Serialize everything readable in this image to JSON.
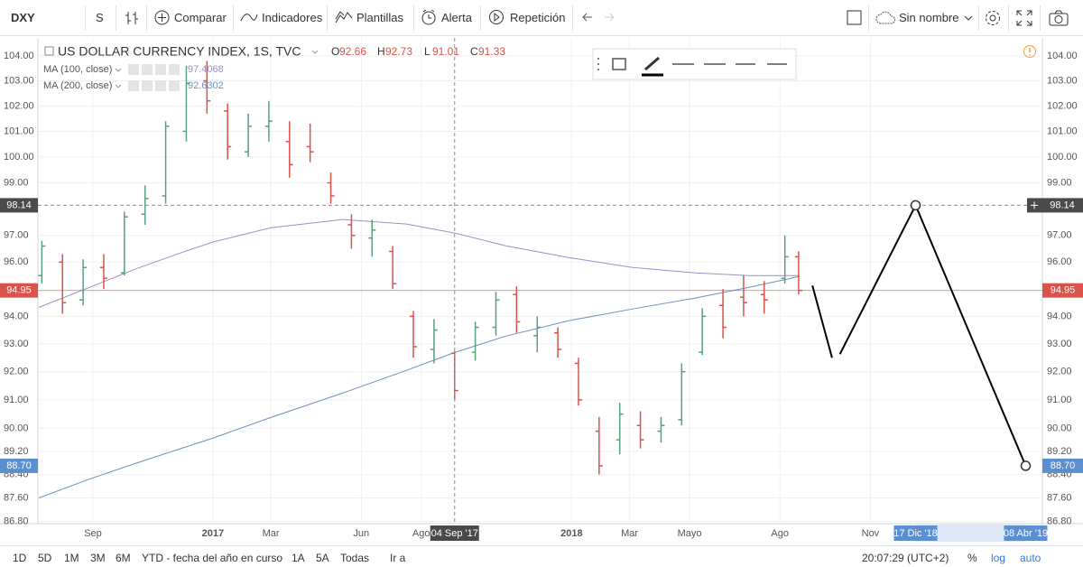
{
  "toolbar": {
    "symbol": "DXY",
    "interval": "S",
    "compare": "Comparar",
    "indicators": "Indicadores",
    "templates": "Plantillas",
    "alert": "Alerta",
    "replay": "Repetición",
    "layout": "Sin nombre"
  },
  "chart_data": {
    "type": "ohlc",
    "title": "US DOLLAR CURRENCY INDEX, 1S, TVC",
    "legend_letters": [
      "O",
      "H",
      "L",
      "C"
    ],
    "legend_values": [
      92.66,
      92.73,
      91.01,
      91.33
    ],
    "up_color": "#5a9e7c",
    "down_color": "#d9534a",
    "x": [
      "2016-07-11",
      "2016-08-01",
      "2016-08-22",
      "2016-09-12",
      "2016-10-03",
      "2016-10-24",
      "2016-11-14",
      "2016-12-05",
      "2016-12-26",
      "2017-01-16",
      "2017-02-06",
      "2017-02-27",
      "2017-03-20",
      "2017-04-10",
      "2017-05-01",
      "2017-05-22",
      "2017-06-12",
      "2017-07-03",
      "2017-07-24",
      "2017-08-14",
      "2017-09-04",
      "2017-09-25",
      "2017-10-16",
      "2017-11-06",
      "2017-11-27",
      "2017-12-18",
      "2018-01-08",
      "2018-01-29",
      "2018-02-19",
      "2018-03-12",
      "2018-04-02",
      "2018-04-23",
      "2018-05-14",
      "2018-06-04",
      "2018-06-25",
      "2018-07-16",
      "2018-08-06",
      "2018-08-20"
    ],
    "open": [
      95.5,
      96.0,
      94.6,
      95.8,
      95.6,
      97.8,
      98.5,
      101.0,
      103.0,
      101.8,
      100.2,
      101.2,
      100.6,
      100.4,
      99.0,
      97.4,
      96.9,
      96.4,
      94.0,
      92.8,
      92.66,
      92.7,
      93.6,
      94.8,
      93.3,
      93.4,
      92.3,
      89.9,
      89.6,
      90.1,
      89.9,
      90.3,
      92.7,
      94.4,
      94.7,
      94.8,
      95.4,
      96.2
    ],
    "high": [
      96.8,
      96.3,
      96.1,
      96.3,
      97.9,
      98.9,
      101.4,
      103.6,
      103.8,
      102.1,
      101.7,
      102.2,
      101.4,
      101.3,
      99.4,
      97.8,
      97.6,
      96.6,
      94.2,
      93.9,
      92.73,
      93.8,
      94.9,
      95.1,
      94.0,
      93.6,
      92.5,
      90.4,
      90.9,
      90.6,
      90.4,
      92.3,
      94.3,
      95.0,
      95.5,
      95.3,
      97.0,
      96.4
    ],
    "low": [
      95.2,
      94.1,
      94.4,
      95.0,
      95.5,
      97.4,
      98.2,
      100.6,
      101.7,
      99.9,
      100.0,
      100.6,
      99.2,
      99.8,
      98.2,
      96.5,
      96.2,
      95.0,
      92.5,
      92.3,
      91.01,
      92.4,
      93.3,
      93.4,
      92.7,
      92.5,
      90.8,
      88.4,
      89.1,
      89.3,
      89.5,
      90.1,
      92.6,
      93.2,
      94.0,
      94.1,
      95.2,
      94.8
    ],
    "close": [
      96.6,
      94.5,
      95.8,
      95.4,
      97.7,
      98.4,
      101.2,
      102.9,
      102.2,
      100.4,
      101.2,
      101.4,
      99.7,
      100.2,
      98.5,
      97.0,
      97.2,
      95.2,
      92.9,
      93.5,
      91.33,
      93.6,
      94.6,
      93.8,
      93.6,
      92.8,
      91.0,
      88.7,
      90.5,
      89.6,
      90.1,
      92.0,
      94.0,
      93.6,
      94.5,
      94.6,
      96.2,
      94.95
    ],
    "studies": [
      {
        "name": "MA (100, close)",
        "value": 97.4068,
        "color": "#9b8fc4",
        "x": [
          "2016-07-08",
          "2016-08-29",
          "2016-10-14",
          "2016-11-29",
          "2017-01-01",
          "2017-03-01",
          "2017-05-13",
          "2017-07-17",
          "2017-09-04",
          "2017-10-26",
          "2017-12-29",
          "2018-03-04",
          "2018-05-07",
          "2018-07-01",
          "2018-08-21"
        ],
        "values": [
          94.33,
          95.07,
          95.74,
          96.34,
          96.75,
          97.29,
          97.6,
          97.43,
          97.09,
          96.61,
          96.17,
          95.8,
          95.6,
          95.5,
          95.5
        ]
      },
      {
        "name": "MA (200, close)",
        "value": 92.6302,
        "color": "#6d8fc4",
        "x": [
          "2016-07-08",
          "2016-08-29",
          "2016-10-14",
          "2017-01-01",
          "2017-03-01",
          "2017-05-13",
          "2017-07-17",
          "2017-09-04",
          "2017-10-26",
          "2017-12-29",
          "2018-03-04",
          "2018-05-07",
          "2018-07-01",
          "2018-08-21"
        ],
        "values": [
          87.6,
          88.25,
          88.78,
          89.66,
          90.38,
          91.24,
          92.05,
          92.69,
          93.28,
          93.84,
          94.27,
          94.67,
          95.07,
          95.47
        ]
      }
    ],
    "xlim": [
      "2016-07-07",
      "2019-04-25"
    ],
    "xticks": [
      {
        "value": "2016-09-01",
        "label": "Sep"
      },
      {
        "value": "2017-01-01",
        "label": "2017"
      },
      {
        "value": "2017-03-01",
        "label": "Mar"
      },
      {
        "value": "2017-06-01",
        "label": "Jun"
      },
      {
        "value": "2017-08-01",
        "label": "Ago"
      },
      {
        "value": "2018-01-01",
        "label": "2018"
      },
      {
        "value": "2018-03-01",
        "label": "Mar"
      },
      {
        "value": "2018-05-01",
        "label": "Mayo"
      },
      {
        "value": "2018-08-01",
        "label": "Ago"
      },
      {
        "value": "2018-11-01",
        "label": "Nov"
      }
    ],
    "ylim": [
      86.73,
      104.73
    ],
    "yticks": [
      {
        "value": 104,
        "label": "104.00"
      },
      {
        "value": 103,
        "label": "103.00"
      },
      {
        "value": 102,
        "label": "102.00"
      },
      {
        "value": 101,
        "label": "101.00"
      },
      {
        "value": 100,
        "label": "100.00"
      },
      {
        "value": 99,
        "label": "99.00"
      },
      {
        "value": 97,
        "label": "97.00"
      },
      {
        "value": 96,
        "label": "96.00"
      },
      {
        "value": 94,
        "label": "94.00"
      },
      {
        "value": 93,
        "label": "93.00"
      },
      {
        "value": 92,
        "label": "92.00"
      },
      {
        "value": 91,
        "label": "91.00"
      },
      {
        "value": 90,
        "label": "90.00"
      },
      {
        "value": 89.2,
        "label": "89.20"
      },
      {
        "value": 88.4,
        "label": "88.40"
      },
      {
        "value": 87.6,
        "label": "87.60"
      },
      {
        "value": 86.8,
        "label": "86.80"
      }
    ],
    "log_scale": true,
    "grid": true,
    "crosshair": {
      "x": "2017-09-04",
      "x_label": "04 Sep '17",
      "y": 98.14,
      "color": "#8f86b0"
    },
    "last_price": {
      "value": 94.95,
      "color": "#d9534a"
    },
    "drawing": {
      "color": "#000000",
      "label_color": "#5b8fd0",
      "x": [
        "2018-09-03",
        "2018-09-23",
        null,
        "2018-10-01",
        "2018-12-17",
        "2019-04-08"
      ],
      "values": [
        95.13,
        92.5,
        null,
        92.63,
        98.14,
        88.7
      ],
      "x_labels": [
        null,
        null,
        null,
        null,
        "17 Dic '18",
        "08 Abr '19"
      ],
      "value_labels": [
        null,
        null,
        null,
        null,
        null,
        "88.70"
      ]
    }
  },
  "bottom_bar": {
    "ranges": [
      "1D",
      "5D",
      "1M",
      "3M",
      "6M",
      "YTD - fecha del año en curso",
      "1A",
      "5A",
      "Todas"
    ],
    "goto": "Ir a",
    "clock": "20:07:29 (UTC+2)",
    "percent": "%",
    "log": "log",
    "auto": "auto"
  }
}
